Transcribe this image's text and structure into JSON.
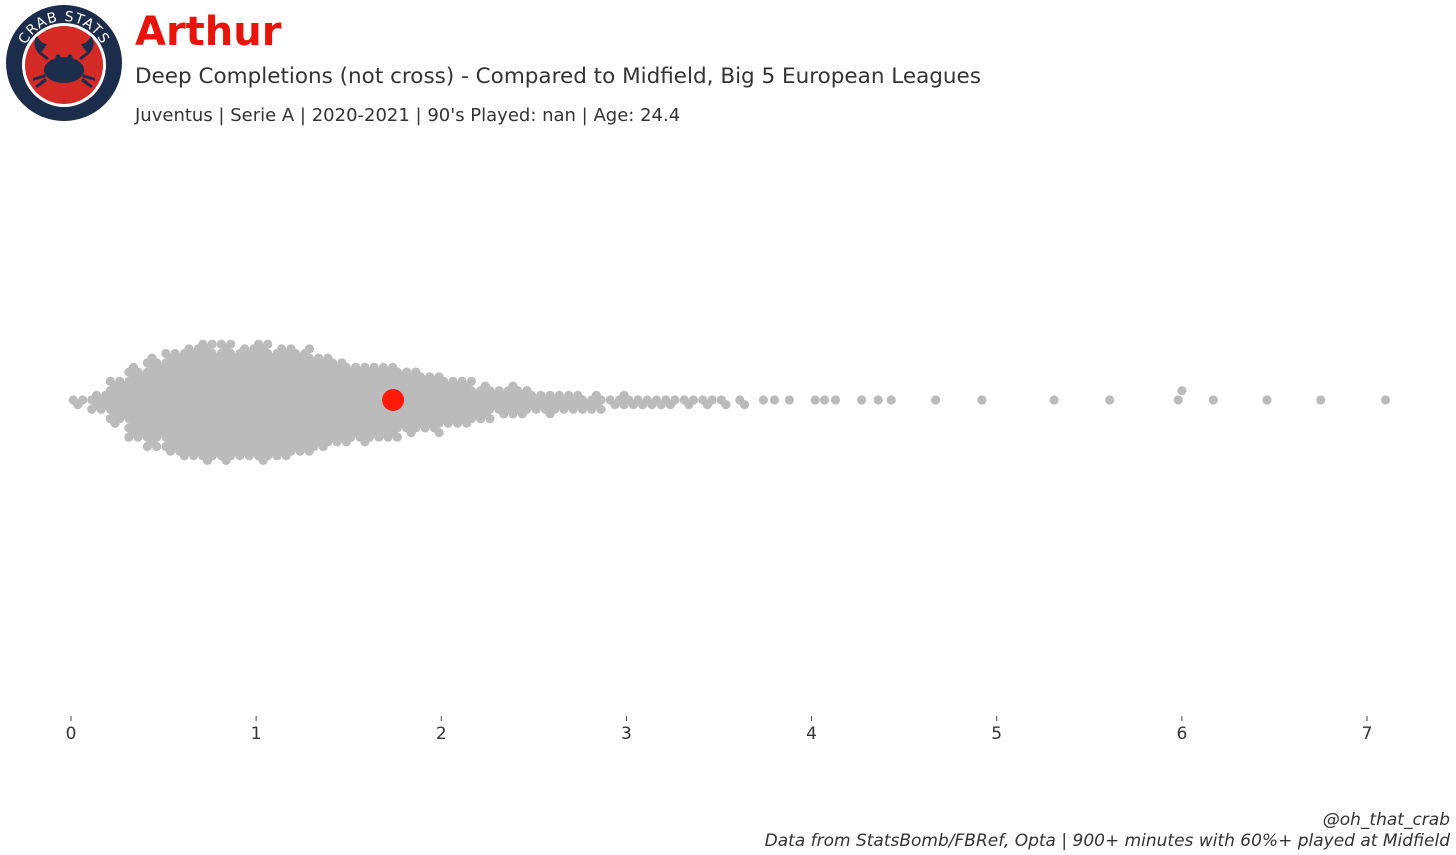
{
  "header": {
    "logo_text": "CRAB STATS",
    "player_name": "Arthur",
    "subtitle": "Deep Completions (not cross) - Compared to Midfield, Big 5 European Leagues",
    "meta": "Juventus  | Serie A | 2020-2021 | 90's Played: nan | Age: 24.4"
  },
  "footer": {
    "handle": "@oh_that_crab",
    "source": "Data from StatsBomb/FBRef, Opta | 900+ minutes with 60%+ played at Midfield"
  },
  "colors": {
    "highlight": "#ff1a0a",
    "points": "#bbbbbb",
    "title": "#e8140c",
    "logo_ring": "#1c2d4c",
    "logo_inner": "#d42a25"
  },
  "chart_data": {
    "type": "scatter",
    "subtype": "beeswarm",
    "x_label": "",
    "xlim": [
      0,
      7.2
    ],
    "xticks": [
      0,
      1,
      2,
      3,
      4,
      5,
      6,
      7
    ],
    "highlight": {
      "name": "Arthur",
      "value": 1.74
    },
    "tail_values": [
      3.74,
      3.8,
      3.88,
      4.02,
      4.07,
      4.13,
      4.27,
      4.36,
      4.43,
      4.67,
      4.92,
      5.31,
      5.61,
      5.98,
      6.0,
      6.17,
      6.46,
      6.75,
      7.1
    ],
    "distribution": [
      {
        "x": 0.05,
        "count": 3
      },
      {
        "x": 0.15,
        "count": 8
      },
      {
        "x": 0.25,
        "count": 19
      },
      {
        "x": 0.35,
        "count": 31
      },
      {
        "x": 0.45,
        "count": 38
      },
      {
        "x": 0.55,
        "count": 44
      },
      {
        "x": 0.65,
        "count": 48
      },
      {
        "x": 0.75,
        "count": 50
      },
      {
        "x": 0.85,
        "count": 50
      },
      {
        "x": 0.95,
        "count": 48
      },
      {
        "x": 1.05,
        "count": 50
      },
      {
        "x": 1.15,
        "count": 48
      },
      {
        "x": 1.25,
        "count": 45
      },
      {
        "x": 1.35,
        "count": 40
      },
      {
        "x": 1.45,
        "count": 36
      },
      {
        "x": 1.55,
        "count": 33
      },
      {
        "x": 1.65,
        "count": 32
      },
      {
        "x": 1.75,
        "count": 30
      },
      {
        "x": 1.85,
        "count": 27
      },
      {
        "x": 1.95,
        "count": 25
      },
      {
        "x": 2.05,
        "count": 20
      },
      {
        "x": 2.15,
        "count": 18
      },
      {
        "x": 2.25,
        "count": 14
      },
      {
        "x": 2.35,
        "count": 13
      },
      {
        "x": 2.45,
        "count": 11
      },
      {
        "x": 2.55,
        "count": 9
      },
      {
        "x": 2.65,
        "count": 8
      },
      {
        "x": 2.75,
        "count": 7
      },
      {
        "x": 2.85,
        "count": 6
      },
      {
        "x": 2.95,
        "count": 5
      },
      {
        "x": 3.05,
        "count": 4
      },
      {
        "x": 3.15,
        "count": 4
      },
      {
        "x": 3.25,
        "count": 3
      },
      {
        "x": 3.35,
        "count": 3
      },
      {
        "x": 3.45,
        "count": 3
      },
      {
        "x": 3.55,
        "count": 2
      },
      {
        "x": 3.65,
        "count": 2
      }
    ]
  }
}
